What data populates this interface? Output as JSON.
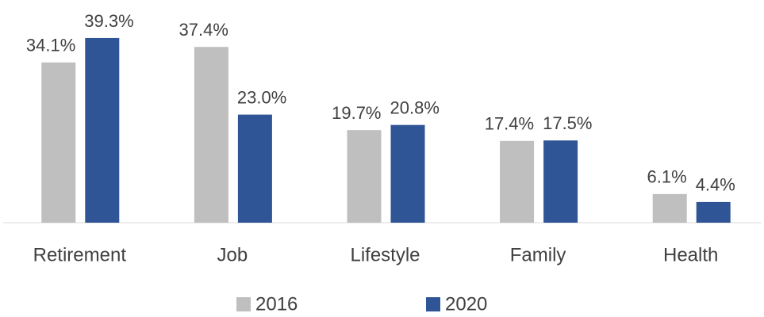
{
  "chart_data": {
    "type": "bar",
    "categories": [
      "Retirement",
      "Job",
      "Lifestyle",
      "Family",
      "Health"
    ],
    "series": [
      {
        "name": "2016",
        "color": "#bfbfbf",
        "values": [
          34.1,
          37.4,
          19.7,
          17.4,
          6.1
        ],
        "value_labels": [
          "34.1%",
          "37.4%",
          "19.7%",
          "17.4%",
          "6.1%"
        ]
      },
      {
        "name": "2020",
        "color": "#2f5597",
        "values": [
          39.3,
          23.0,
          20.8,
          17.5,
          4.4
        ],
        "value_labels": [
          "39.3%",
          "23.0%",
          "20.8%",
          "17.5%",
          "4.4%"
        ]
      }
    ],
    "legend": "bottom"
  }
}
